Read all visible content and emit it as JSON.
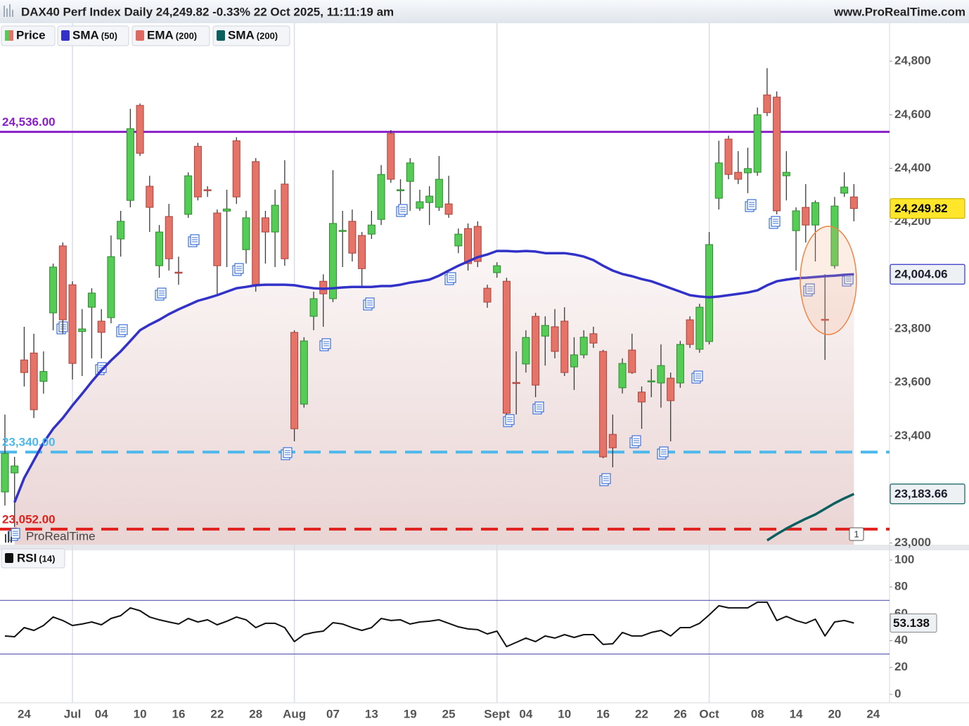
{
  "chart_data": [
    {
      "type": "candlestick",
      "title": "DAX40 Perf Index Daily 24,249.82 -0.33% 22 Oct 2025, 11:11:19 am",
      "source": "www.ProRealTime.com",
      "watermark": "ProRealTime",
      "marker": "1",
      "x": [
        "06-20",
        "06-23",
        "06-24",
        "06-25",
        "06-26",
        "06-27",
        "06-30",
        "07-01",
        "07-02",
        "07-03",
        "07-04",
        "07-07",
        "07-08",
        "07-09",
        "07-10",
        "07-11",
        "07-14",
        "07-15",
        "07-16",
        "07-17",
        "07-18",
        "07-21",
        "07-22",
        "07-23",
        "07-24",
        "07-25",
        "07-28",
        "07-29",
        "07-30",
        "07-31",
        "08-01",
        "08-04",
        "08-05",
        "08-06",
        "08-07",
        "08-08",
        "08-11",
        "08-12",
        "08-13",
        "08-14",
        "08-15",
        "08-18",
        "08-19",
        "08-20",
        "08-21",
        "08-22",
        "08-25",
        "08-26",
        "08-27",
        "08-28",
        "08-29",
        "09-01",
        "09-02",
        "09-03",
        "09-04",
        "09-05",
        "09-08",
        "09-09",
        "09-10",
        "09-11",
        "09-12",
        "09-15",
        "09-16",
        "09-17",
        "09-18",
        "09-19",
        "09-22",
        "09-23",
        "09-24",
        "09-25",
        "09-26",
        "09-29",
        "09-30",
        "10-01",
        "10-02",
        "10-03",
        "10-06",
        "10-07",
        "10-08",
        "10-09",
        "10-10",
        "10-13",
        "10-14",
        "10-15",
        "10-16",
        "10-17",
        "10-20",
        "10-21",
        "10-22"
      ],
      "xticks": [
        {
          "value": "06-24",
          "label": "24"
        },
        {
          "value": "07-01",
          "label": "Jul",
          "major": true
        },
        {
          "value": "07-04",
          "label": "04"
        },
        {
          "value": "07-10",
          "label": "10"
        },
        {
          "value": "07-16",
          "label": "16"
        },
        {
          "value": "07-22",
          "label": "22"
        },
        {
          "value": "07-28",
          "label": "28"
        },
        {
          "value": "08-01",
          "label": "Aug",
          "major": true
        },
        {
          "value": "08-07",
          "label": "07"
        },
        {
          "value": "08-13",
          "label": "13"
        },
        {
          "value": "08-19",
          "label": "19"
        },
        {
          "value": "08-25",
          "label": "25"
        },
        {
          "value": "09-01",
          "label": "Sept",
          "major": true
        },
        {
          "value": "09-04",
          "label": "04"
        },
        {
          "value": "09-10",
          "label": "10"
        },
        {
          "value": "09-16",
          "label": "16"
        },
        {
          "value": "09-22",
          "label": "22"
        },
        {
          "value": "09-26",
          "label": "26"
        },
        {
          "value": "10-01",
          "label": "Oct",
          "major": true
        },
        {
          "value": "10-08",
          "label": "08"
        },
        {
          "value": "10-14",
          "label": "14"
        },
        {
          "value": "10-20",
          "label": "20"
        },
        {
          "value": "10-24",
          "label": "24"
        }
      ],
      "ylim": [
        22994,
        24942
      ],
      "yticks": [
        {
          "value": 24800,
          "label": "24,800"
        },
        {
          "value": 24600,
          "label": "24,600"
        },
        {
          "value": 24400,
          "label": "24,400"
        },
        {
          "value": 24200,
          "label": "24,200"
        },
        {
          "value": 23800,
          "label": "23,800"
        },
        {
          "value": 23600,
          "label": "23,600"
        },
        {
          "value": 23400,
          "label": "23,400"
        },
        {
          "value": 23000,
          "label": "23,000"
        }
      ],
      "series": [
        {
          "name": "Price",
          "up_color": "#55cc55",
          "down_color": "#e57368",
          "last_label": "24,249.82",
          "open": [
            23191,
            23262,
            23684,
            23710,
            23604,
            23860,
            24110,
            23965,
            23790,
            23881,
            23829,
            23842,
            24136,
            24280,
            24635,
            24333,
            24036,
            24220,
            24012,
            24228,
            24482,
            24320,
            24233,
            24240,
            24503,
            24096,
            24425,
            24215,
            24162,
            24341,
            23787,
            23519,
            23847,
            23978,
            23913,
            24165,
            24202,
            24149,
            24154,
            24209,
            24530,
            24318,
            24351,
            24251,
            24272,
            24254,
            24267,
            24110,
            24175,
            24183,
            23952,
            24010,
            23978,
            23600,
            23669,
            23847,
            23773,
            23808,
            23829,
            23658,
            23703,
            23782,
            23716,
            23406,
            23580,
            23721,
            23564,
            23602,
            23598,
            23616,
            23598,
            23834,
            23724,
            23753,
            24288,
            24509,
            24385,
            24383,
            24385,
            24674,
            24666,
            24372,
            24167,
            24254,
            24188,
            23836,
            24036,
            24307,
            24293
          ],
          "high": [
            23480,
            23322,
            23808,
            23782,
            23716,
            24044,
            24123,
            23978,
            23874,
            23952,
            23874,
            24149,
            24241,
            24622,
            24642,
            24372,
            24188,
            24267,
            24070,
            24385,
            24495,
            24333,
            24246,
            24320,
            24516,
            24241,
            24438,
            24241,
            24320,
            24430,
            23795,
            23769,
            23939,
            24004,
            24393,
            24241,
            24246,
            24162,
            24241,
            24412,
            24543,
            24359,
            24438,
            24320,
            24333,
            24446,
            24372,
            24175,
            24194,
            24202,
            23965,
            24049,
            23991,
            23716,
            23795,
            23860,
            23847,
            23874,
            23881,
            23769,
            23795,
            23808,
            23722,
            23480,
            23690,
            23782,
            23585,
            23650,
            23742,
            23637,
            23755,
            23847,
            23894,
            24162,
            24503,
            24522,
            24464,
            24477,
            24627,
            24774,
            24687,
            24464,
            24254,
            24341,
            24280,
            24004,
            24293,
            24385,
            24341
          ],
          "low": [
            23140,
            23060,
            23585,
            23467,
            23558,
            23795,
            23782,
            23611,
            23624,
            23690,
            23690,
            23821,
            24070,
            24254,
            24446,
            24162,
            23991,
            24018,
            23965,
            24215,
            24280,
            24293,
            23926,
            24031,
            24267,
            24044,
            23939,
            24044,
            24031,
            24036,
            23380,
            23506,
            23795,
            23808,
            23900,
            24031,
            24052,
            23952,
            24136,
            24188,
            24346,
            24267,
            24241,
            24241,
            24188,
            24241,
            24215,
            24083,
            24018,
            24031,
            23879,
            23991,
            23480,
            23480,
            23637,
            23545,
            23663,
            23690,
            23624,
            23572,
            23690,
            23729,
            23317,
            23283,
            23559,
            23632,
            23427,
            23545,
            23506,
            23380,
            23580,
            23729,
            23711,
            23742,
            24246,
            24359,
            24341,
            24307,
            24372,
            24595,
            24228,
            24280,
            24018,
            24123,
            24052,
            23684,
            24025,
            24293,
            24202
          ],
          "close": [
            23335,
            23288,
            23637,
            23498,
            23641,
            24031,
            23834,
            23671,
            23800,
            23934,
            23787,
            24070,
            24202,
            24548,
            24456,
            24254,
            24162,
            24062,
            24010,
            24372,
            24293,
            24318,
            24036,
            24248,
            24293,
            24215,
            23965,
            24162,
            24262,
            24062,
            23427,
            23755,
            23913,
            23931,
            24194,
            24168,
            24083,
            24025,
            24188,
            24377,
            24359,
            24320,
            24420,
            24275,
            24296,
            24359,
            24228,
            24154,
            24044,
            24052,
            23900,
            24036,
            23485,
            23596,
            23768,
            23590,
            23813,
            23716,
            23637,
            23703,
            23769,
            23747,
            23322,
            23356,
            23671,
            23637,
            23527,
            23606,
            23663,
            23532,
            23742,
            23742,
            23881,
            24115,
            24420,
            24377,
            24359,
            24399,
            24600,
            24608,
            24241,
            24385,
            24241,
            24188,
            24272,
            23834,
            24259,
            24330,
            24249.82
          ]
        },
        {
          "name": "SMA",
          "params": "(50)",
          "color": "#3232c8",
          "last_label": "24,004.06",
          "values": [
            null,
            23152,
            23243,
            23309,
            23375,
            23427,
            23467,
            23514,
            23558,
            23603,
            23645,
            23682,
            23716,
            23755,
            23795,
            23816,
            23834,
            23855,
            23873,
            23889,
            23905,
            23915,
            23926,
            23939,
            23952,
            23957,
            23963,
            23965,
            23965,
            23965,
            23963,
            23957,
            23952,
            23950,
            23952,
            23955,
            23957,
            23957,
            23957,
            23960,
            23960,
            23965,
            23973,
            23978,
            23984,
            23999,
            24018,
            24036,
            24052,
            24068,
            24078,
            24091,
            24091,
            24089,
            24091,
            24089,
            24083,
            24083,
            24083,
            24078,
            24070,
            24057,
            24036,
            24018,
            24005,
            23997,
            23986,
            23978,
            23965,
            23952,
            23939,
            23926,
            23921,
            23918,
            23921,
            23926,
            23931,
            23936,
            23944,
            23963,
            23978,
            23984,
            23989,
            23991,
            23994,
            23997,
            23999,
            24002,
            24004.06
          ]
        },
        {
          "name": "EMA",
          "params": "(200)",
          "color": "#e06a62"
        },
        {
          "name": "SMA",
          "params": "(200)",
          "color": "#0b5f5f",
          "last_label": "23,183.66",
          "values": [
            null,
            null,
            null,
            null,
            null,
            null,
            null,
            null,
            null,
            null,
            null,
            null,
            null,
            null,
            null,
            null,
            null,
            null,
            null,
            null,
            null,
            null,
            null,
            null,
            null,
            null,
            null,
            null,
            null,
            null,
            null,
            null,
            null,
            null,
            null,
            null,
            null,
            null,
            null,
            null,
            null,
            null,
            null,
            null,
            null,
            null,
            null,
            null,
            null,
            null,
            null,
            null,
            null,
            null,
            null,
            null,
            null,
            null,
            null,
            null,
            null,
            null,
            null,
            null,
            null,
            null,
            null,
            null,
            null,
            null,
            null,
            null,
            null,
            null,
            null,
            null,
            null,
            null,
            null,
            23010,
            23033,
            23054,
            23073,
            23091,
            23107,
            23128,
            23149,
            23167,
            23183.66
          ]
        }
      ],
      "hlines": [
        {
          "value": 24536,
          "label": "24,536.00",
          "color": "#8a1ec8",
          "dash": false
        },
        {
          "value": 23340,
          "label": "23,340.00",
          "color": "#4cb8ec",
          "dash": true
        },
        {
          "value": 23052,
          "label": "23,052.00",
          "color": "#e0201c",
          "dash": true
        }
      ]
    },
    {
      "type": "line",
      "ylim": [
        -6.3,
        107.3
      ],
      "yticks": [
        100,
        80,
        60,
        40,
        20,
        0
      ],
      "levels": [
        70,
        30
      ],
      "level_color": "#4040a8",
      "series": [
        {
          "name": "RSI",
          "params": "(14)",
          "color": "#111111",
          "last_label": "53.138",
          "values": [
            43.5,
            42.9,
            49.7,
            47.6,
            51.3,
            57.6,
            55.0,
            51.3,
            52.4,
            53.9,
            51.8,
            56.5,
            58.6,
            64.4,
            62.3,
            57.6,
            55.5,
            53.9,
            52.4,
            56.5,
            53.9,
            55.5,
            51.8,
            54.5,
            57.6,
            55.5,
            49.7,
            52.9,
            52.9,
            49.7,
            39.3,
            44.5,
            46.1,
            47.1,
            53.4,
            52.4,
            49.7,
            47.6,
            49.7,
            56.5,
            55.0,
            55.5,
            52.4,
            53.9,
            54.5,
            55.5,
            52.9,
            50.3,
            48.7,
            48.2,
            45.0,
            47.1,
            35.6,
            38.7,
            41.9,
            39.3,
            43.5,
            41.9,
            44.5,
            42.4,
            44.5,
            44.5,
            37.2,
            37.7,
            46.1,
            43.5,
            43.5,
            46.1,
            47.6,
            43.5,
            49.7,
            49.7,
            52.9,
            59.2,
            66.0,
            64.4,
            64.4,
            64.4,
            68.6,
            68.6,
            55.0,
            58.1,
            55.0,
            52.9,
            56.0,
            43.5,
            53.9,
            55.0,
            53.138
          ]
        }
      ]
    }
  ]
}
